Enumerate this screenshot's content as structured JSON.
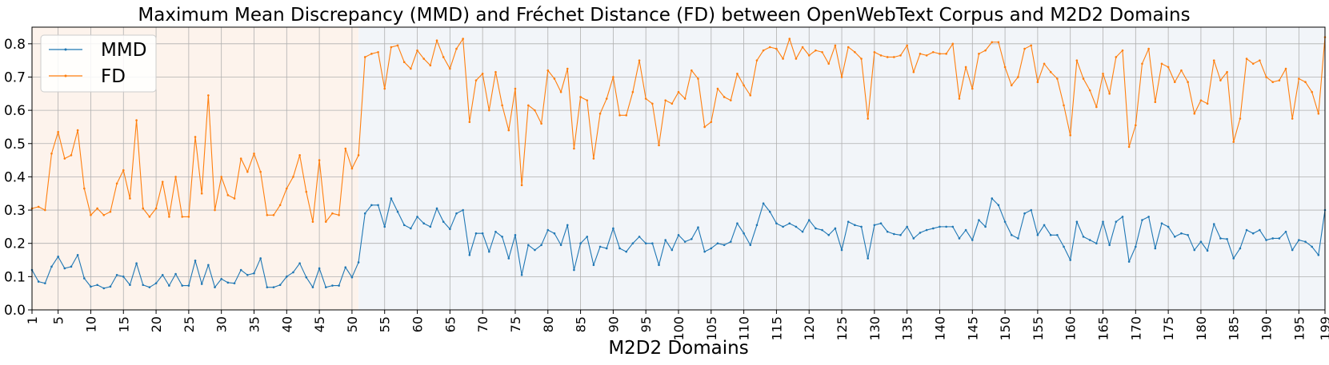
{
  "chart_data": {
    "type": "line",
    "title": "Maximum Mean Discrepancy (MMD) and Fréchet Distance (FD) between OpenWebText Corpus and M2D2 Domains",
    "xlabel": "M2D2 Domains",
    "ylabel": "",
    "xlim": [
      1,
      199
    ],
    "ylim": [
      0.0,
      0.85
    ],
    "yticks": [
      "0.0",
      "0.1",
      "0.2",
      "0.3",
      "0.4",
      "0.5",
      "0.6",
      "0.7",
      "0.8"
    ],
    "xticks": [
      "1",
      "5",
      "10",
      "15",
      "20",
      "25",
      "30",
      "35",
      "40",
      "45",
      "50",
      "55",
      "60",
      "65",
      "70",
      "75",
      "80",
      "85",
      "90",
      "95",
      "100",
      "105",
      "110",
      "115",
      "120",
      "125",
      "130",
      "135",
      "140",
      "145",
      "150",
      "155",
      "160",
      "165",
      "170",
      "175",
      "180",
      "185",
      "190",
      "195",
      "199"
    ],
    "grid": true,
    "legend_position": "top-left",
    "shaded_regions": [
      {
        "from": 1,
        "to": 51,
        "color": "#fdf3ec"
      },
      {
        "from": 51,
        "to": 199,
        "color": "#f2f5f9"
      }
    ],
    "series": [
      {
        "name": "MMD",
        "color": "#1f77b4",
        "values": [
          0.12,
          0.085,
          0.08,
          0.13,
          0.16,
          0.125,
          0.13,
          0.165,
          0.095,
          0.07,
          0.075,
          0.065,
          0.07,
          0.105,
          0.1,
          0.075,
          0.14,
          0.075,
          0.068,
          0.08,
          0.105,
          0.073,
          0.108,
          0.073,
          0.073,
          0.148,
          0.078,
          0.135,
          0.068,
          0.093,
          0.082,
          0.08,
          0.12,
          0.105,
          0.11,
          0.155,
          0.068,
          0.068,
          0.075,
          0.1,
          0.113,
          0.14,
          0.098,
          0.068,
          0.125,
          0.068,
          0.073,
          0.073,
          0.128,
          0.098,
          0.143,
          0.29,
          0.315,
          0.315,
          0.25,
          0.335,
          0.295,
          0.255,
          0.245,
          0.28,
          0.26,
          0.25,
          0.305,
          0.265,
          0.243,
          0.29,
          0.3,
          0.165,
          0.23,
          0.23,
          0.175,
          0.235,
          0.22,
          0.155,
          0.225,
          0.105,
          0.195,
          0.18,
          0.195,
          0.24,
          0.23,
          0.195,
          0.255,
          0.12,
          0.2,
          0.22,
          0.135,
          0.19,
          0.185,
          0.245,
          0.185,
          0.175,
          0.2,
          0.22,
          0.2,
          0.2,
          0.135,
          0.21,
          0.18,
          0.225,
          0.205,
          0.213,
          0.248,
          0.175,
          0.185,
          0.2,
          0.195,
          0.205,
          0.26,
          0.23,
          0.195,
          0.255,
          0.32,
          0.295,
          0.26,
          0.25,
          0.26,
          0.25,
          0.235,
          0.27,
          0.245,
          0.24,
          0.225,
          0.245,
          0.18,
          0.265,
          0.255,
          0.25,
          0.155,
          0.255,
          0.26,
          0.235,
          0.228,
          0.225,
          0.25,
          0.215,
          0.232,
          0.24,
          0.245,
          0.25,
          0.25,
          0.25,
          0.215,
          0.24,
          0.21,
          0.27,
          0.25,
          0.335,
          0.315,
          0.265,
          0.225,
          0.215,
          0.29,
          0.3,
          0.225,
          0.255,
          0.225,
          0.225,
          0.19,
          0.15,
          0.265,
          0.22,
          0.21,
          0.2,
          0.265,
          0.195,
          0.265,
          0.28,
          0.145,
          0.19,
          0.27,
          0.28,
          0.185,
          0.26,
          0.25,
          0.22,
          0.23,
          0.225,
          0.18,
          0.205,
          0.178,
          0.258,
          0.215,
          0.213,
          0.155,
          0.185,
          0.24,
          0.23,
          0.24,
          0.21,
          0.215,
          0.215,
          0.235,
          0.18,
          0.21,
          0.205,
          0.19,
          0.165,
          0.3
        ]
      },
      {
        "name": "FD",
        "color": "#ff7f0e",
        "values": [
          0.305,
          0.31,
          0.3,
          0.47,
          0.535,
          0.455,
          0.465,
          0.54,
          0.365,
          0.285,
          0.305,
          0.285,
          0.295,
          0.38,
          0.42,
          0.335,
          0.57,
          0.305,
          0.28,
          0.305,
          0.385,
          0.28,
          0.4,
          0.28,
          0.28,
          0.52,
          0.35,
          0.645,
          0.3,
          0.4,
          0.345,
          0.335,
          0.455,
          0.415,
          0.47,
          0.415,
          0.285,
          0.285,
          0.315,
          0.365,
          0.4,
          0.465,
          0.355,
          0.265,
          0.45,
          0.265,
          0.29,
          0.285,
          0.485,
          0.425,
          0.465,
          0.76,
          0.77,
          0.775,
          0.665,
          0.79,
          0.795,
          0.745,
          0.725,
          0.78,
          0.755,
          0.735,
          0.81,
          0.76,
          0.725,
          0.785,
          0.815,
          0.565,
          0.69,
          0.71,
          0.6,
          0.715,
          0.615,
          0.54,
          0.665,
          0.375,
          0.615,
          0.6,
          0.56,
          0.72,
          0.695,
          0.655,
          0.725,
          0.485,
          0.64,
          0.63,
          0.455,
          0.59,
          0.635,
          0.7,
          0.585,
          0.585,
          0.655,
          0.75,
          0.635,
          0.62,
          0.495,
          0.63,
          0.62,
          0.655,
          0.635,
          0.72,
          0.695,
          0.55,
          0.565,
          0.665,
          0.64,
          0.63,
          0.71,
          0.675,
          0.645,
          0.75,
          0.78,
          0.79,
          0.785,
          0.755,
          0.815,
          0.755,
          0.79,
          0.765,
          0.78,
          0.775,
          0.74,
          0.795,
          0.7,
          0.79,
          0.775,
          0.755,
          0.575,
          0.775,
          0.765,
          0.76,
          0.76,
          0.765,
          0.795,
          0.715,
          0.77,
          0.765,
          0.775,
          0.77,
          0.77,
          0.8,
          0.635,
          0.73,
          0.665,
          0.77,
          0.78,
          0.805,
          0.805,
          0.73,
          0.675,
          0.7,
          0.785,
          0.795,
          0.685,
          0.74,
          0.715,
          0.695,
          0.615,
          0.525,
          0.75,
          0.695,
          0.66,
          0.61,
          0.71,
          0.65,
          0.76,
          0.78,
          0.49,
          0.555,
          0.74,
          0.785,
          0.625,
          0.74,
          0.73,
          0.685,
          0.72,
          0.685,
          0.59,
          0.63,
          0.62,
          0.75,
          0.69,
          0.715,
          0.505,
          0.575,
          0.755,
          0.74,
          0.75,
          0.7,
          0.685,
          0.69,
          0.725,
          0.575,
          0.695,
          0.685,
          0.655,
          0.59,
          0.82
        ]
      }
    ]
  }
}
